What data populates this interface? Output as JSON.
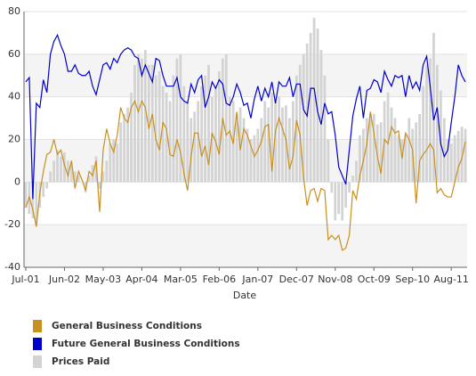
{
  "chart_data": {
    "type": "line",
    "x_label": "Date",
    "categories": [
      "Jul-01",
      null,
      null,
      null,
      null,
      null,
      null,
      null,
      null,
      null,
      null,
      "Jun-02",
      null,
      null,
      null,
      null,
      null,
      null,
      null,
      null,
      null,
      null,
      "May-03",
      null,
      null,
      null,
      null,
      null,
      null,
      null,
      null,
      null,
      null,
      "Apr-04",
      null,
      null,
      null,
      null,
      null,
      null,
      null,
      null,
      null,
      null,
      "Mar-05",
      null,
      null,
      null,
      null,
      null,
      null,
      null,
      null,
      null,
      null,
      "Feb-06",
      null,
      null,
      null,
      null,
      null,
      null,
      null,
      null,
      null,
      null,
      "Jan-07",
      null,
      null,
      null,
      null,
      null,
      null,
      null,
      null,
      null,
      null,
      "Dec-07",
      null,
      null,
      null,
      null,
      null,
      null,
      null,
      null,
      null,
      null,
      "Nov-08",
      null,
      null,
      null,
      null,
      null,
      null,
      null,
      null,
      null,
      null,
      "Oct-09",
      null,
      null,
      null,
      null,
      null,
      null,
      null,
      null,
      null,
      null,
      "Sep-10",
      null,
      null,
      null,
      null,
      null,
      null,
      null,
      null,
      null,
      null,
      "Aug-11",
      null,
      null,
      null,
      null
    ],
    "series": [
      {
        "name": "General Business Conditions",
        "type": "line",
        "color": "#c8901e",
        "values": [
          -12,
          -7,
          -13,
          -21,
          -5,
          5,
          13,
          14,
          20,
          13,
          15,
          8,
          3,
          10,
          -3,
          5,
          1,
          -4,
          5,
          3,
          10,
          -14,
          15,
          25,
          18,
          14,
          22,
          35,
          30,
          28,
          35,
          38,
          33,
          38,
          35,
          25,
          32,
          20,
          15,
          28,
          25,
          13,
          12,
          20,
          14,
          4,
          -4,
          12,
          23,
          23,
          12,
          17,
          8,
          23,
          19,
          13,
          30,
          22,
          24,
          18,
          33,
          15,
          25,
          22,
          17,
          12,
          15,
          19,
          26,
          27,
          5,
          24,
          30,
          25,
          20,
          6,
          12,
          29,
          22,
          2,
          -11,
          -4,
          -3,
          -9,
          -3,
          -4,
          -27,
          -25,
          -27,
          -25,
          -32,
          -31,
          -25,
          -4,
          -8,
          3,
          10,
          18,
          33,
          23,
          12,
          4,
          20,
          18,
          26,
          23,
          24,
          11,
          23,
          20,
          15,
          -10,
          10,
          13,
          15,
          18,
          15,
          -5,
          -3,
          -6,
          -7,
          -7,
          0,
          7,
          11,
          19
        ]
      },
      {
        "name": "Future General Business Conditions",
        "type": "line",
        "color": "#0000cc",
        "values": [
          47,
          49,
          -8,
          37,
          35,
          48,
          42,
          60,
          66,
          69,
          64,
          60,
          52,
          52,
          55,
          51,
          50,
          50,
          52,
          45,
          41,
          48,
          55,
          56,
          53,
          58,
          56,
          60,
          62,
          63,
          62,
          59,
          58,
          50,
          55,
          51,
          47,
          58,
          57,
          50,
          45,
          45,
          45,
          49,
          40,
          38,
          37,
          46,
          42,
          48,
          50,
          35,
          40,
          47,
          44,
          48,
          46,
          37,
          36,
          40,
          46,
          42,
          36,
          37,
          30,
          39,
          45,
          38,
          44,
          40,
          47,
          37,
          47,
          45,
          45,
          49,
          40,
          46,
          46,
          34,
          31,
          44,
          44,
          33,
          27,
          37,
          32,
          33,
          22,
          7,
          3,
          -1,
          15,
          31,
          39,
          45,
          30,
          43,
          44,
          48,
          47,
          42,
          52,
          48,
          45,
          50,
          49,
          50,
          40,
          50,
          44,
          47,
          43,
          55,
          59,
          45,
          29,
          35,
          18,
          12,
          15,
          28,
          40,
          55,
          50,
          47
        ]
      },
      {
        "name": "Prices Paid",
        "type": "bar",
        "color": "#d3d3d3",
        "values": [
          -12,
          -15,
          -17,
          -20,
          -12,
          -7,
          -3,
          5,
          10,
          15,
          12,
          14,
          10,
          8,
          5,
          3,
          0,
          -5,
          3,
          8,
          12,
          -3,
          5,
          10,
          18,
          20,
          18,
          28,
          32,
          35,
          42,
          55,
          60,
          58,
          62,
          55,
          55,
          50,
          52,
          45,
          42,
          38,
          50,
          58,
          60,
          45,
          38,
          30,
          33,
          38,
          45,
          50,
          55,
          40,
          45,
          52,
          58,
          60,
          40,
          38,
          32,
          35,
          30,
          25,
          20,
          22,
          25,
          30,
          38,
          35,
          42,
          38,
          40,
          35,
          36,
          30,
          38,
          50,
          55,
          60,
          65,
          70,
          77,
          72,
          62,
          50,
          20,
          -5,
          -18,
          -15,
          -18,
          -12,
          -5,
          3,
          10,
          22,
          25,
          30,
          32,
          32,
          27,
          28,
          38,
          42,
          35,
          30,
          22,
          20,
          22,
          30,
          25,
          28,
          32,
          45,
          55,
          58,
          70,
          55,
          43,
          30,
          20,
          18,
          22,
          24,
          26,
          25
        ]
      }
    ],
    "ylim": [
      -40,
      80
    ],
    "yticks": [
      -40,
      -20,
      0,
      20,
      40,
      60,
      80
    ],
    "grid": true,
    "legend": "bottom-left"
  }
}
